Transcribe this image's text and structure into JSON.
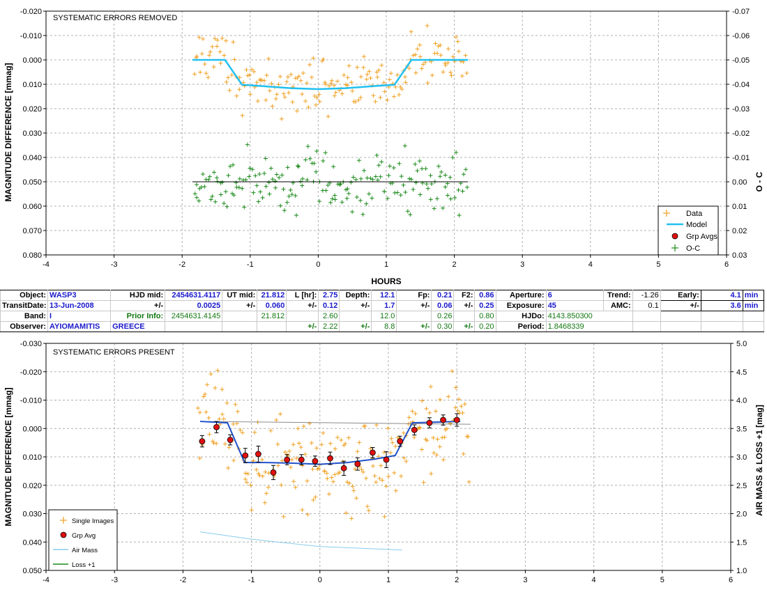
{
  "chart_data": [
    {
      "type": "scatter",
      "label": "SYSTEMATIC ERRORS REMOVED",
      "xlabel": "HOURS",
      "ylabel": "MAGNITUDE DIFFERENCE [mmag]",
      "y2label": "O - C",
      "xlim": [
        -4,
        6
      ],
      "ylim": [
        -0.02,
        0.08
      ],
      "y_inverted": true,
      "y2lim": [
        -0.07,
        0.03
      ],
      "grid": true,
      "legend_position": "bottom-right",
      "x_ticks": [
        "-4",
        "-3",
        "-2",
        "-1",
        "0",
        "1",
        "2",
        "3",
        "4",
        "5",
        "6"
      ],
      "y_ticks": [
        "-0.020",
        "-0.010",
        "0.000",
        "0.010",
        "0.020",
        "0.030",
        "0.040",
        "0.050",
        "0.060",
        "0.070",
        "0.080"
      ],
      "y2_ticks": [
        "-0.07",
        "-0.06",
        "-0.05",
        "-0.04",
        "-0.03",
        "-0.02",
        "-0.01",
        "0.00",
        "0.01",
        "0.02",
        "0.03"
      ],
      "legend": [
        {
          "name": "Data",
          "marker": "plus",
          "color": "#f0a020"
        },
        {
          "name": "Model",
          "marker": "line",
          "color": "#20c0f0"
        },
        {
          "name": "Grp Avgs",
          "marker": "circle",
          "color": "#e01010"
        },
        {
          "name": "O-C",
          "marker": "plus",
          "color": "#1a8a1a"
        }
      ],
      "model": {
        "x": [
          -1.85,
          -1.37,
          -1.12,
          -0.8,
          -0.4,
          0,
          0.4,
          0.8,
          1.12,
          1.37,
          2.2
        ],
        "y": [
          0.0,
          0.0,
          0.0102,
          0.0108,
          0.0116,
          0.012,
          0.0116,
          0.0108,
          0.0102,
          0.0,
          0.0
        ]
      },
      "oc_reference": {
        "x": [
          -1.85,
          2.2
        ],
        "y": [
          0.05,
          0.05
        ]
      },
      "data_scatter": {
        "x_range": [
          -1.82,
          2.18
        ],
        "count": 185,
        "description_free": true
      },
      "oc_scatter": {
        "x_range": [
          -1.82,
          2.18
        ],
        "count": 185
      }
    },
    {
      "type": "scatter",
      "label": "SYSTEMATIC ERRORS PRESENT",
      "ylabel": "MAGNITUDE DIFFERENCE [mmag]",
      "y2label": "AIR MASS & LOSS +1 [mag]",
      "xlim": [
        -4,
        6
      ],
      "ylim": [
        -0.03,
        0.05
      ],
      "y_inverted": true,
      "y2lim": [
        1.0,
        5.0
      ],
      "grid": true,
      "legend_position": "bottom-left",
      "x_ticks": [
        "-4",
        "-3",
        "-2",
        "-1",
        "0",
        "1",
        "2",
        "3",
        "4",
        "5",
        "6"
      ],
      "y_ticks": [
        "-0.030",
        "-0.020",
        "-0.010",
        "0.000",
        "0.010",
        "0.020",
        "0.030",
        "0.040",
        "0.050"
      ],
      "y2_ticks": [
        "1.0",
        "1.5",
        "2.0",
        "2.5",
        "3.0",
        "3.5",
        "4.0",
        "4.5",
        "5.0"
      ],
      "legend": [
        {
          "name": "Single Images",
          "marker": "plus",
          "color": "#f0a020"
        },
        {
          "name": "Grp Avg",
          "marker": "circle",
          "color": "#e01010"
        },
        {
          "name": "Air Mass",
          "marker": "line",
          "color": "#88ccee"
        },
        {
          "name": "Loss +1",
          "marker": "line",
          "color": "#1a8a1a"
        }
      ],
      "model": {
        "x": [
          -1.75,
          -1.35,
          -1.1,
          -0.8,
          -0.4,
          0,
          0.4,
          0.8,
          1.1,
          1.35,
          2.05
        ],
        "y": [
          -0.0025,
          -0.002,
          0.012,
          0.012,
          0.0122,
          0.0126,
          0.012,
          0.0108,
          0.0095,
          -0.002,
          -0.0025
        ]
      },
      "air_mass_y2": {
        "x": [
          -1.75,
          -1.0,
          0.0,
          1.0,
          1.2
        ],
        "y": [
          1.68,
          1.55,
          1.42,
          1.37,
          1.36
        ]
      },
      "trend_line": {
        "x": [
          -1.75,
          2.2
        ],
        "y": [
          -0.0025,
          -0.0015
        ]
      },
      "group_averages": {
        "x": [
          -1.72,
          -1.51,
          -1.31,
          -1.09,
          -0.9,
          -0.68,
          -0.48,
          -0.27,
          -0.07,
          0.15,
          0.35,
          0.55,
          0.77,
          0.97,
          1.17,
          1.38,
          1.6,
          1.8,
          2.0
        ],
        "y": [
          0.0045,
          -0.0005,
          0.004,
          0.0095,
          0.009,
          0.0155,
          0.011,
          0.011,
          0.0115,
          0.0105,
          0.014,
          0.0125,
          0.0085,
          0.011,
          0.0045,
          0.0005,
          -0.002,
          -0.003,
          -0.003
        ],
        "err": [
          0.002,
          0.002,
          0.0018,
          0.0025,
          0.0028,
          0.0025,
          0.0018,
          0.0018,
          0.0018,
          0.0022,
          0.0025,
          0.0022,
          0.0018,
          0.0028,
          0.0018,
          0.0018,
          0.0018,
          0.0018,
          0.0022
        ]
      },
      "single_images": {
        "x_range": [
          -1.78,
          2.18
        ],
        "count": 210
      }
    }
  ],
  "info_table": {
    "row1": {
      "object_label": "Object:",
      "object": "WASP3",
      "hjd_mid_label": "HJD mid:",
      "hjd_mid": "2454631.4117",
      "ut_mid_label": "UT mid:",
      "ut_mid": "21.812",
      "l_label": "L [hr]:",
      "l": "2.75",
      "depth_label": "Depth:",
      "depth": "12.1",
      "fp_label": "Fp:",
      "fp": "0.21",
      "f2_label": "F2:",
      "f2": "0.86",
      "aperture_label": "Aperture:",
      "aperture": "6",
      "trend_label": "Trend:",
      "trend": "-1.26",
      "early_label": "Early:",
      "early": "4.1",
      "early_unit": "min"
    },
    "row2": {
      "transit_label": "TransitDate:",
      "transit": "13-Jun-2008",
      "pm1": "+/-",
      "hjd_err": "0.0025",
      "pm2": "+/-",
      "ut_err": "0.060",
      "pm3": "+/-",
      "l_err": "0.12",
      "pm4": "+/-",
      "depth_err": "1.7",
      "pm5": "+/-",
      "fp_err": "0.06",
      "pm6": "+/-",
      "f2_err": "0.25",
      "exposure_label": "Exposure:",
      "exposure": "45",
      "amc_label": "AMC:",
      "amc": "0.1",
      "pm7": "+/-",
      "early_err": "3.6",
      "early_err_unit": "min"
    },
    "row3": {
      "band_label": "Band:",
      "band": "I",
      "prior_label": "Prior Info:",
      "prior_hjd": "2454631.4145",
      "prior_ut": "21.812",
      "prior_l": "2.60",
      "prior_depth": "12.0",
      "prior_fp": "0.26",
      "prior_f2": "0.80",
      "hjdo_label": "HJDo:",
      "hjdo": "4143.850300"
    },
    "row4": {
      "observer_label": "Observer:",
      "observer": "AYIOMAMITIS",
      "country": "GREECE",
      "pm1": "+/-",
      "l_err": "2.22",
      "pm2": "+/-",
      "depth_err": "8.8",
      "pm3": "+/-",
      "fp_err": "0.30",
      "pm4": "+/-",
      "f2_err": "0.20",
      "period_label": "Period:",
      "period": "1.8468339"
    }
  },
  "colors": {
    "data": "#f0a020",
    "model_top": "#20c0f0",
    "model_bottom": "#2050c8",
    "oc": "#1a8a1a",
    "grp": "#e01010",
    "airmass": "#88ccee",
    "trend": "#8a8a8a",
    "grid": "#b0b0b0",
    "value_blue": "#1a1acc",
    "prior_green": "#117711"
  }
}
